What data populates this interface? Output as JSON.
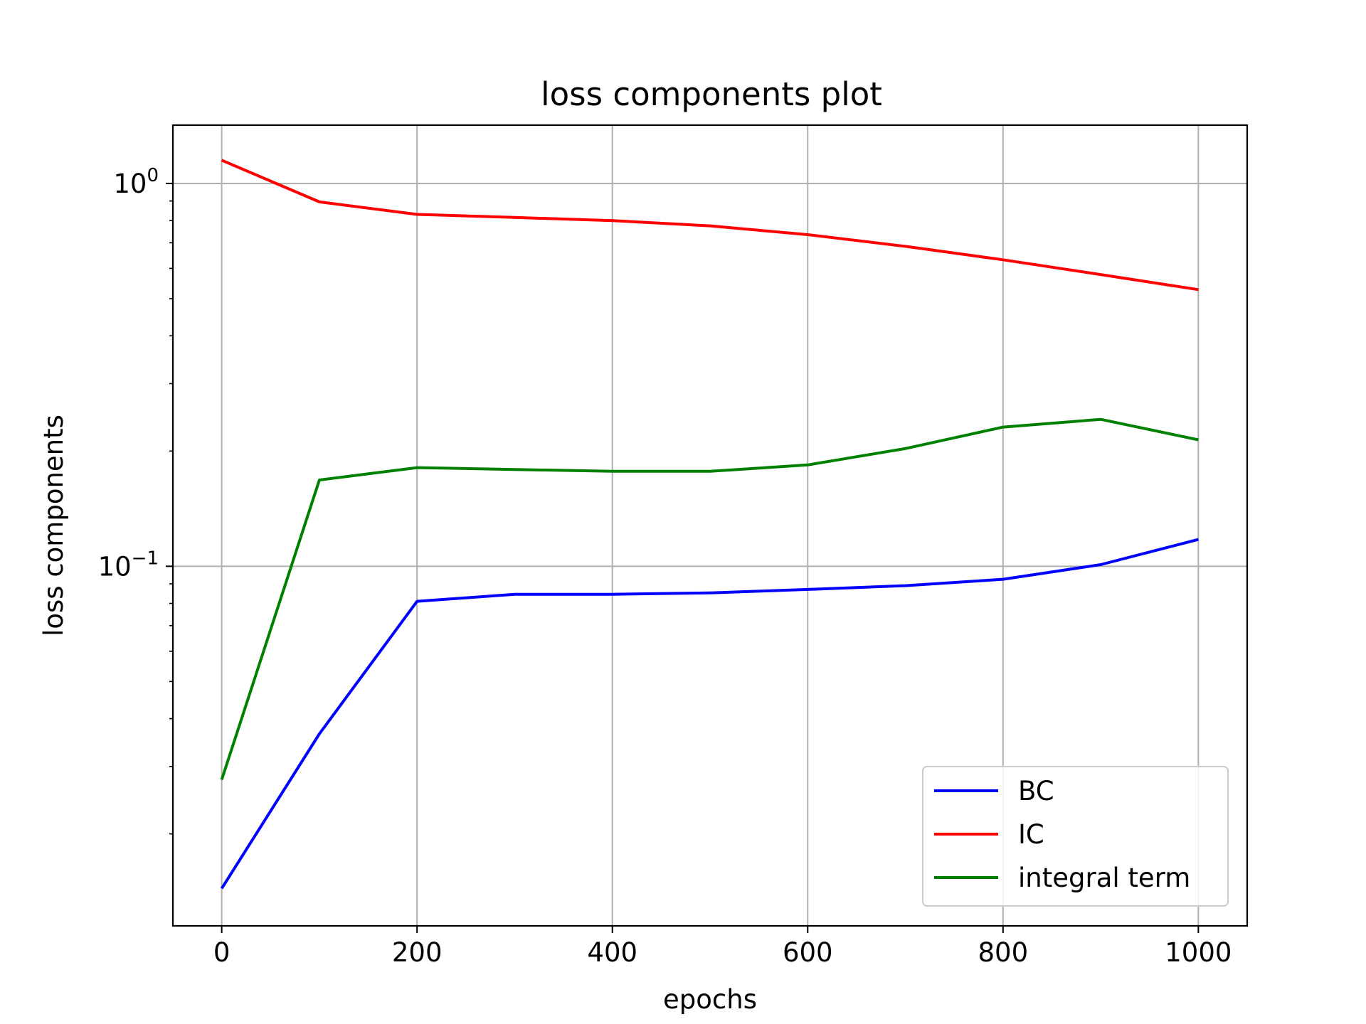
{
  "chart_data": {
    "type": "line",
    "title": "loss components plot",
    "xlabel": "epochs",
    "ylabel": "loss components",
    "y_scale": "log",
    "grid": true,
    "legend_position": "lower-right",
    "xlim": [
      -50,
      1050
    ],
    "ylim": [
      0.0115,
      1.42
    ],
    "x_ticks": [
      0,
      200,
      400,
      600,
      800,
      1000
    ],
    "x_tick_labels": [
      "0",
      "200",
      "400",
      "600",
      "800",
      "1000"
    ],
    "y_ticks": [
      {
        "value": 1,
        "base": "10",
        "exponent": "0"
      },
      {
        "value": 0.1,
        "base": "10",
        "exponent": "−1"
      }
    ],
    "x": [
      0,
      100,
      200,
      300,
      400,
      500,
      600,
      700,
      800,
      900,
      1000
    ],
    "series": [
      {
        "name": "BC",
        "color": "#0000ff",
        "values": [
          0.0144,
          0.0365,
          0.081,
          0.0845,
          0.0845,
          0.0852,
          0.087,
          0.089,
          0.0925,
          0.101,
          0.1175
        ]
      },
      {
        "name": "IC",
        "color": "#ff0000",
        "values": [
          1.15,
          0.895,
          0.83,
          0.815,
          0.8,
          0.775,
          0.735,
          0.685,
          0.632,
          0.578,
          0.528
        ]
      },
      {
        "name": "integral term",
        "color": "#008000",
        "values": [
          0.0277,
          0.168,
          0.181,
          0.179,
          0.177,
          0.177,
          0.184,
          0.203,
          0.231,
          0.242,
          0.214
        ]
      }
    ]
  }
}
